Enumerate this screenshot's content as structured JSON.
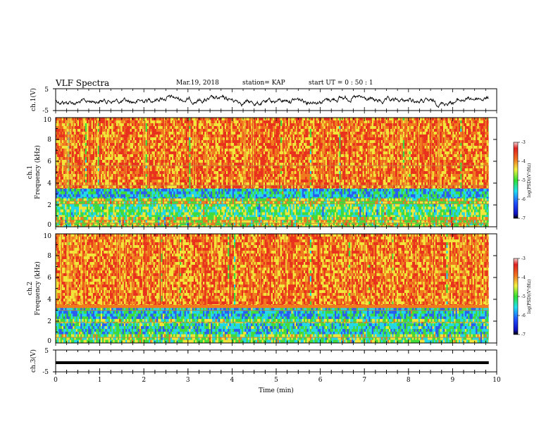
{
  "header": {
    "title": "VLF Spectra",
    "date": "Mar.19, 2018",
    "station": "station= KAP",
    "start": "start  UT  =   0  : 50 : 1"
  },
  "chart_data": [
    {
      "type": "line",
      "name": "ch1-waveform",
      "ylabel": "ch.1(V)",
      "ylim": [
        -5,
        5
      ],
      "yticks": [
        "5",
        "-5"
      ],
      "xlim": [
        0,
        10
      ]
    },
    {
      "type": "heatmap",
      "name": "ch1-spectrogram",
      "ylabel": "ch.1\nFrequency (kHz)",
      "ylabel_line1": "ch.1",
      "ylabel_line2": "Frequency  (kHz)",
      "ylim": [
        0,
        10
      ],
      "yticks": [
        "0",
        "2",
        "4",
        "6",
        "8",
        "10"
      ],
      "xlim": [
        0,
        10
      ],
      "colorbar": {
        "label": "log(PSD)(V²/Hz)",
        "ticks": [
          "-3",
          "-4",
          "-5",
          "-6",
          "-7"
        ],
        "range": [
          -7,
          -3
        ]
      },
      "bands_khz": [
        {
          "from": 0.0,
          "to": 0.8,
          "level": "green"
        },
        {
          "from": 0.8,
          "to": 2.6,
          "level": "green-cyan"
        },
        {
          "from": 2.6,
          "to": 3.5,
          "level": "cyan"
        },
        {
          "from": 3.5,
          "to": 10.0,
          "level": "orange-red"
        }
      ]
    },
    {
      "type": "heatmap",
      "name": "ch2-spectrogram",
      "ylabel": "ch.2\nFrequency (kHz)",
      "ylabel_line1": "ch.2",
      "ylabel_line2": "Frequency  (kHz)",
      "ylim": [
        0,
        10
      ],
      "yticks": [
        "0",
        "2",
        "4",
        "6",
        "8",
        "10"
      ],
      "xlim": [
        0,
        10
      ],
      "colorbar": {
        "label": "log(PSD)(V²/Hz)",
        "ticks": [
          "-3",
          "-4",
          "-5",
          "-6",
          "-7"
        ],
        "range": [
          -7,
          -3
        ]
      }
    },
    {
      "type": "line",
      "name": "ch3-waveform",
      "ylabel": "ch.3(V)",
      "ylim": [
        -5,
        5
      ],
      "yticks": [
        "5",
        "-5"
      ],
      "xlim": [
        0,
        10
      ],
      "constant_value": 0
    }
  ],
  "xaxis": {
    "label": "Time  (min)",
    "ticks": [
      "0",
      "1",
      "2",
      "3",
      "4",
      "5",
      "6",
      "7",
      "8",
      "9",
      "10"
    ],
    "data_end": 9.82
  },
  "colors": {
    "red": "#e8321e",
    "orange": "#f07a1e",
    "yellow": "#f2e63a",
    "green": "#3fdc3c",
    "cyan": "#22d8e8",
    "blue": "#2a5cf0",
    "black": "#000000"
  }
}
